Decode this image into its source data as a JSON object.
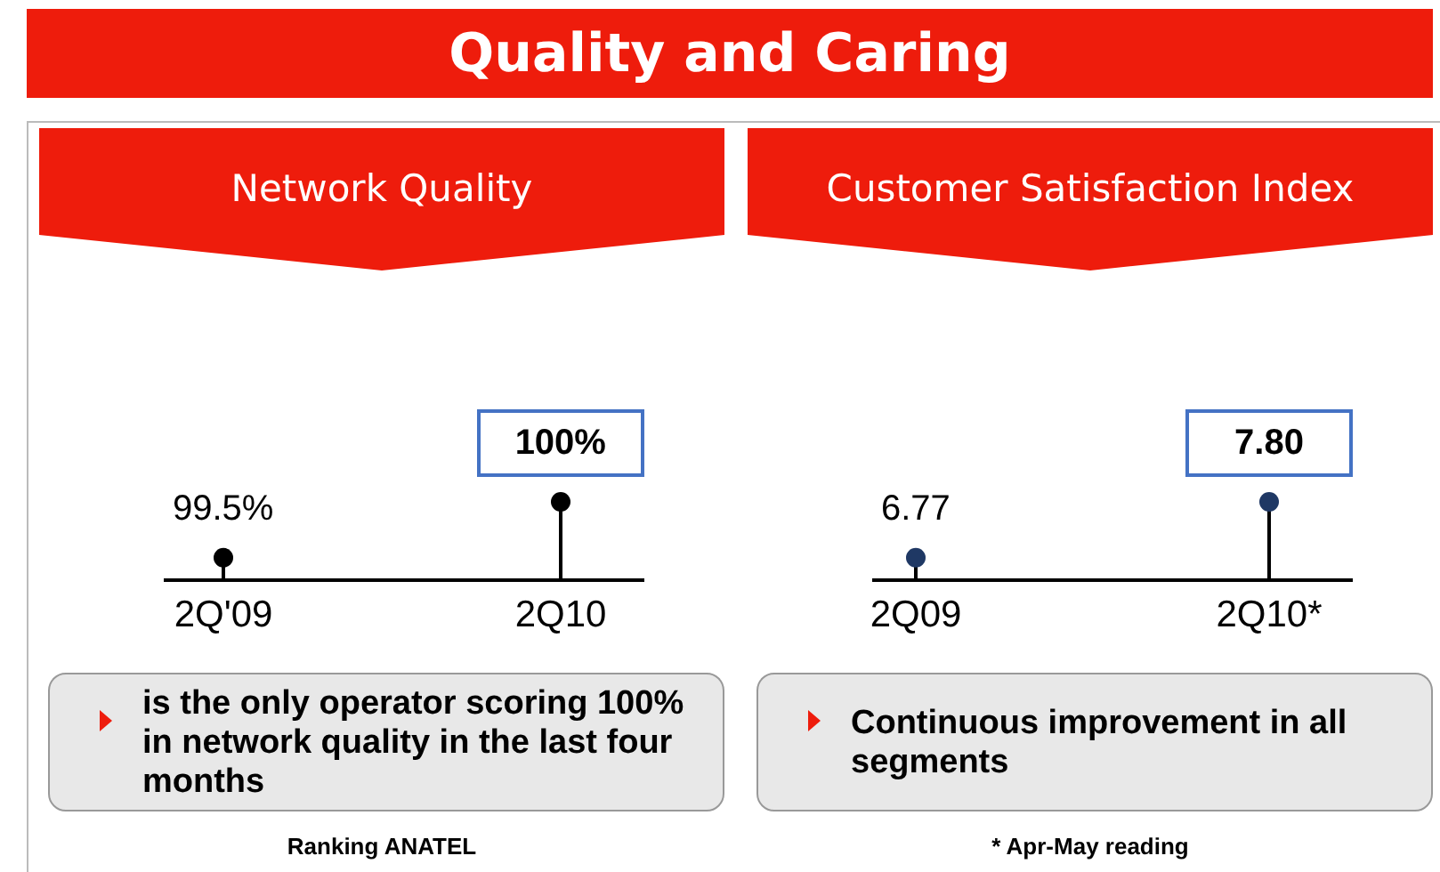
{
  "chart_data": [
    {
      "type": "other",
      "title": "Quality and Caring"
    },
    {
      "type": "lollipop",
      "title": "Network Quality",
      "categories": [
        "2Q'09",
        "2Q10"
      ],
      "values": [
        99.5,
        100
      ],
      "value_labels": [
        "99.5%",
        "100%"
      ],
      "color": "#000000",
      "marker": "circle",
      "tick_labels": "x",
      "annotations": [
        "is the only operator scoring 100% in network quality in the last four months",
        "Ranking ANATEL"
      ]
    },
    {
      "type": "lollipop",
      "title": "Customer Satisfaction Index",
      "categories": [
        "2Q09",
        "2Q10*"
      ],
      "values": [
        6.77,
        7.8
      ],
      "value_labels": [
        "6.77",
        "7.80"
      ],
      "color": "#1f3864",
      "marker": "circle",
      "tick_labels": "x",
      "annotations": [
        "Continuous improvement in all segments",
        "* Apr-May reading"
      ]
    }
  ]
}
